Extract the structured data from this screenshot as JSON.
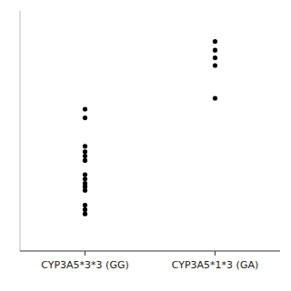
{
  "chart_data": {
    "type": "strip",
    "categories": [
      "CYP3A5*3*3 (GG)",
      "CYP3A5*1*3 (GA)"
    ],
    "values": [
      [
        6.5,
        6.1,
        4.8,
        4.55,
        4.35,
        4.15,
        3.5,
        3.3,
        3.1,
        2.95,
        2.78,
        2.1,
        1.9,
        1.7
      ],
      [
        9.6,
        9.2,
        8.85,
        8.5,
        7.0
      ]
    ],
    "color": "#000000",
    "ylim": [
      0,
      11
    ],
    "tick_labels": "x"
  }
}
